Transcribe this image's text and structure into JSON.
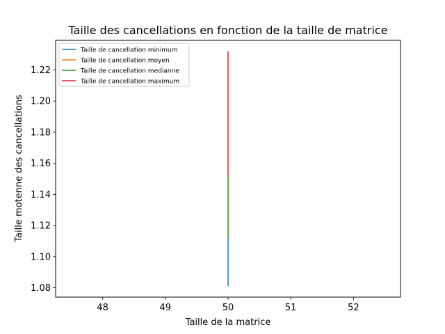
{
  "chart_data": {
    "type": "line",
    "title": "Taille des cancellations en fonction de la taille de matrice",
    "xlabel": "Taille de la matrice",
    "ylabel": "Taille motenne des cancellations",
    "xlim": [
      47.25,
      52.75
    ],
    "ylim": [
      1.074,
      1.239
    ],
    "xticks": [
      48,
      49,
      50,
      51,
      52
    ],
    "yticks": [
      1.08,
      1.1,
      1.12,
      1.14,
      1.16,
      1.18,
      1.2,
      1.22
    ],
    "ytick_labels": [
      "1.08",
      "1.10",
      "1.12",
      "1.14",
      "1.16",
      "1.18",
      "1.20",
      "1.22"
    ],
    "legend_position": "upper-left",
    "grid": false,
    "series": [
      {
        "name": "Taille de cancellation minimum",
        "color": "#1f77b4",
        "points": [
          [
            50,
            1.081
          ],
          [
            50,
            1.112
          ]
        ]
      },
      {
        "name": "Taille de cancellation moyen",
        "color": "#ff7f0e",
        "points": [
          [
            50,
            1.112
          ],
          [
            50,
            1.152
          ]
        ]
      },
      {
        "name": "Taille de cancellation medianne",
        "color": "#2ca02c",
        "points": [
          [
            50,
            1.112
          ],
          [
            50,
            1.152
          ]
        ]
      },
      {
        "name": "Taille de cancellation maximum",
        "color": "#d62728",
        "points": [
          [
            50,
            1.152
          ],
          [
            50,
            1.232
          ]
        ]
      }
    ]
  }
}
